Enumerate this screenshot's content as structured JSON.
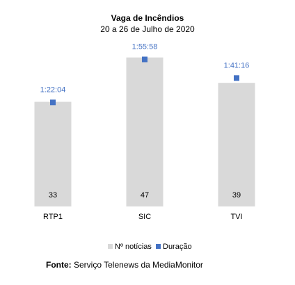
{
  "chart_data": {
    "type": "bar",
    "title": "Vaga de Incêndios",
    "subtitle": "20 a 26 de Julho de 2020",
    "categories": [
      "RTP1",
      "SIC",
      "TVI"
    ],
    "series": [
      {
        "name": "Nº notícias",
        "type": "bar",
        "color": "#D9D9D9",
        "values": [
          33,
          47,
          39
        ],
        "labels": [
          "33",
          "47",
          "39"
        ]
      },
      {
        "name": "Duração",
        "type": "marker",
        "color": "#4472C4",
        "values_seconds": [
          4924,
          6958,
          6076
        ],
        "labels": [
          "1:22:04",
          "1:55:58",
          "1:41:16"
        ]
      }
    ],
    "ylim_count": [
      0,
      50
    ],
    "ylim_seconds": [
      0,
      7500
    ],
    "grid": false,
    "legend_position": "bottom"
  },
  "source": {
    "label": "Fonte:",
    "text": "Serviço Telenews da MediaMonitor"
  }
}
